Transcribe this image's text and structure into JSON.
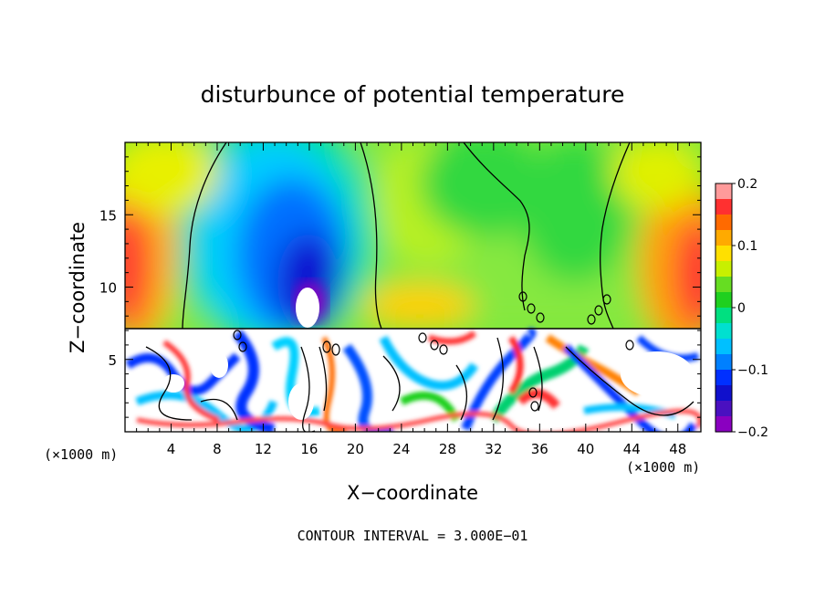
{
  "chart_data": {
    "type": "heatmap",
    "title": "disturbunce of potential temperature",
    "xlabel": "X−coordinate",
    "ylabel": "Z−coordinate",
    "x_unit_left": "(×1000 m)",
    "x_unit_right": "(×1000 m)",
    "xlim": [
      0,
      50
    ],
    "ylim": [
      0,
      20
    ],
    "x_ticks": [
      4,
      8,
      12,
      16,
      20,
      24,
      28,
      32,
      36,
      40,
      44,
      48
    ],
    "y_ticks": [
      5,
      10,
      15
    ],
    "colorbar": {
      "range": [
        -0.2,
        0.2
      ],
      "ticks": [
        0.2,
        0.1,
        0,
        -0.1,
        -0.2
      ],
      "tick_labels": [
        "0.2",
        "0.1",
        "0",
        "−0.1",
        "−0.2"
      ],
      "colors": [
        "#ff9a9a",
        "#ff3030",
        "#ff6a00",
        "#ffaa00",
        "#ffe000",
        "#c8f000",
        "#66dd22",
        "#1fd01f",
        "#00e080",
        "#00e0d0",
        "#00c0ff",
        "#0080ff",
        "#0030ff",
        "#1010cc",
        "#4a10c0",
        "#8a00c0"
      ]
    },
    "field_features": [
      {
        "name": "cold-plume",
        "x": 16,
        "z": 12.5,
        "value": -0.2
      },
      {
        "name": "warm-left-edge",
        "x": 1,
        "z": 12,
        "value": 0.2
      },
      {
        "name": "warm-right-edge",
        "x": 49,
        "z": 11,
        "value": 0.18
      },
      {
        "name": "boundary-layer-top",
        "z": 7.2
      }
    ],
    "footer": "CONTOUR INTERVAL = 3.000E−01"
  }
}
